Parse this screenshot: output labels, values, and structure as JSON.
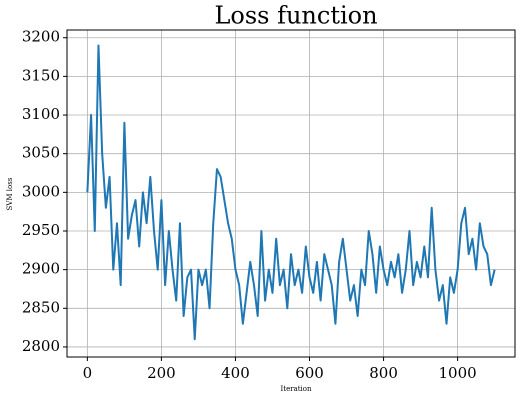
{
  "chart_data": {
    "type": "line",
    "title": "Loss function",
    "xlabel": "Iteration",
    "ylabel": "SVM loss",
    "x": [
      0,
      10,
      20,
      30,
      40,
      50,
      60,
      70,
      80,
      90,
      100,
      110,
      120,
      130,
      140,
      150,
      160,
      170,
      180,
      190,
      200,
      210,
      220,
      230,
      240,
      250,
      260,
      270,
      280,
      290,
      300,
      310,
      320,
      330,
      340,
      350,
      360,
      370,
      380,
      390,
      400,
      410,
      420,
      430,
      440,
      450,
      460,
      470,
      480,
      490,
      500,
      510,
      520,
      530,
      540,
      550,
      560,
      570,
      580,
      590,
      600,
      610,
      620,
      630,
      640,
      650,
      660,
      670,
      680,
      690,
      700,
      710,
      720,
      730,
      740,
      750,
      760,
      770,
      780,
      790,
      800,
      810,
      820,
      830,
      840,
      850,
      860,
      870,
      880,
      890,
      900,
      910,
      920,
      930,
      940,
      950,
      960,
      970,
      980,
      990,
      1000,
      1010,
      1020,
      1030,
      1040,
      1050,
      1060,
      1070,
      1080,
      1090,
      1100
    ],
    "series": [
      {
        "name": "SVM loss",
        "color": "#1f77b4",
        "values": [
          3000,
          3100,
          2950,
          3190,
          3050,
          2980,
          3020,
          2900,
          2960,
          2880,
          3090,
          2940,
          2970,
          2990,
          2930,
          3000,
          2960,
          3020,
          2950,
          2900,
          2990,
          2880,
          2950,
          2900,
          2860,
          2960,
          2840,
          2890,
          2900,
          2810,
          2900,
          2880,
          2900,
          2850,
          2960,
          3030,
          3020,
          2990,
          2960,
          2940,
          2900,
          2880,
          2830,
          2870,
          2910,
          2880,
          2840,
          2950,
          2860,
          2900,
          2870,
          2940,
          2880,
          2900,
          2850,
          2920,
          2880,
          2900,
          2870,
          2930,
          2890,
          2870,
          2910,
          2860,
          2920,
          2900,
          2880,
          2830,
          2910,
          2940,
          2900,
          2860,
          2880,
          2840,
          2900,
          2880,
          2950,
          2920,
          2870,
          2930,
          2900,
          2880,
          2910,
          2890,
          2920,
          2870,
          2900,
          2950,
          2880,
          2910,
          2890,
          2930,
          2890,
          2980,
          2900,
          2860,
          2880,
          2830,
          2890,
          2870,
          2900,
          2960,
          2980,
          2920,
          2940,
          2900,
          2960,
          2930,
          2920,
          2880,
          2900
        ]
      }
    ],
    "xlim": [
      -55,
      1155
    ],
    "ylim": [
      2787,
      3210
    ],
    "xticks": [
      0,
      200,
      400,
      600,
      800,
      1000
    ],
    "yticks": [
      2800,
      2850,
      2900,
      2950,
      3000,
      3050,
      3100,
      3150,
      3200
    ],
    "grid": true
  }
}
